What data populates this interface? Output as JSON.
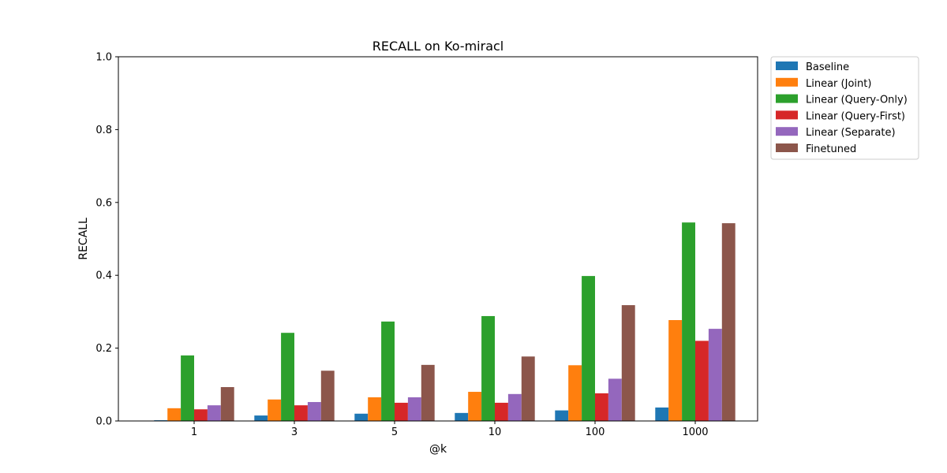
{
  "chart_data": {
    "type": "bar",
    "title": "RECALL on Ko-miracl",
    "xlabel": "@k",
    "ylabel": "RECALL",
    "ylim": [
      0,
      1.0
    ],
    "yticks": [
      "0.0",
      "0.2",
      "0.4",
      "0.6",
      "0.8",
      "1.0"
    ],
    "ytick_values": [
      0,
      0.2,
      0.4,
      0.6,
      0.8,
      1.0
    ],
    "categories": [
      "1",
      "3",
      "5",
      "10",
      "100",
      "1000"
    ],
    "grid": false,
    "legend_position": "outside-top-right",
    "series": [
      {
        "name": "Baseline",
        "color": "#1f77b4",
        "values": [
          0.002,
          0.015,
          0.02,
          0.022,
          0.029,
          0.037
        ]
      },
      {
        "name": "Linear (Joint)",
        "color": "#ff7f0e",
        "values": [
          0.035,
          0.059,
          0.065,
          0.08,
          0.153,
          0.277
        ]
      },
      {
        "name": "Linear (Query-Only)",
        "color": "#2ca02c",
        "values": [
          0.18,
          0.242,
          0.273,
          0.288,
          0.398,
          0.545
        ]
      },
      {
        "name": "Linear (Query-First)",
        "color": "#d62728",
        "values": [
          0.032,
          0.043,
          0.05,
          0.05,
          0.076,
          0.22
        ]
      },
      {
        "name": "Linear (Separate)",
        "color": "#9467bd",
        "values": [
          0.043,
          0.052,
          0.065,
          0.074,
          0.116,
          0.253
        ]
      },
      {
        "name": "Finetuned",
        "color": "#8c564b",
        "values": [
          0.093,
          0.138,
          0.154,
          0.177,
          0.318,
          0.543
        ]
      }
    ]
  }
}
